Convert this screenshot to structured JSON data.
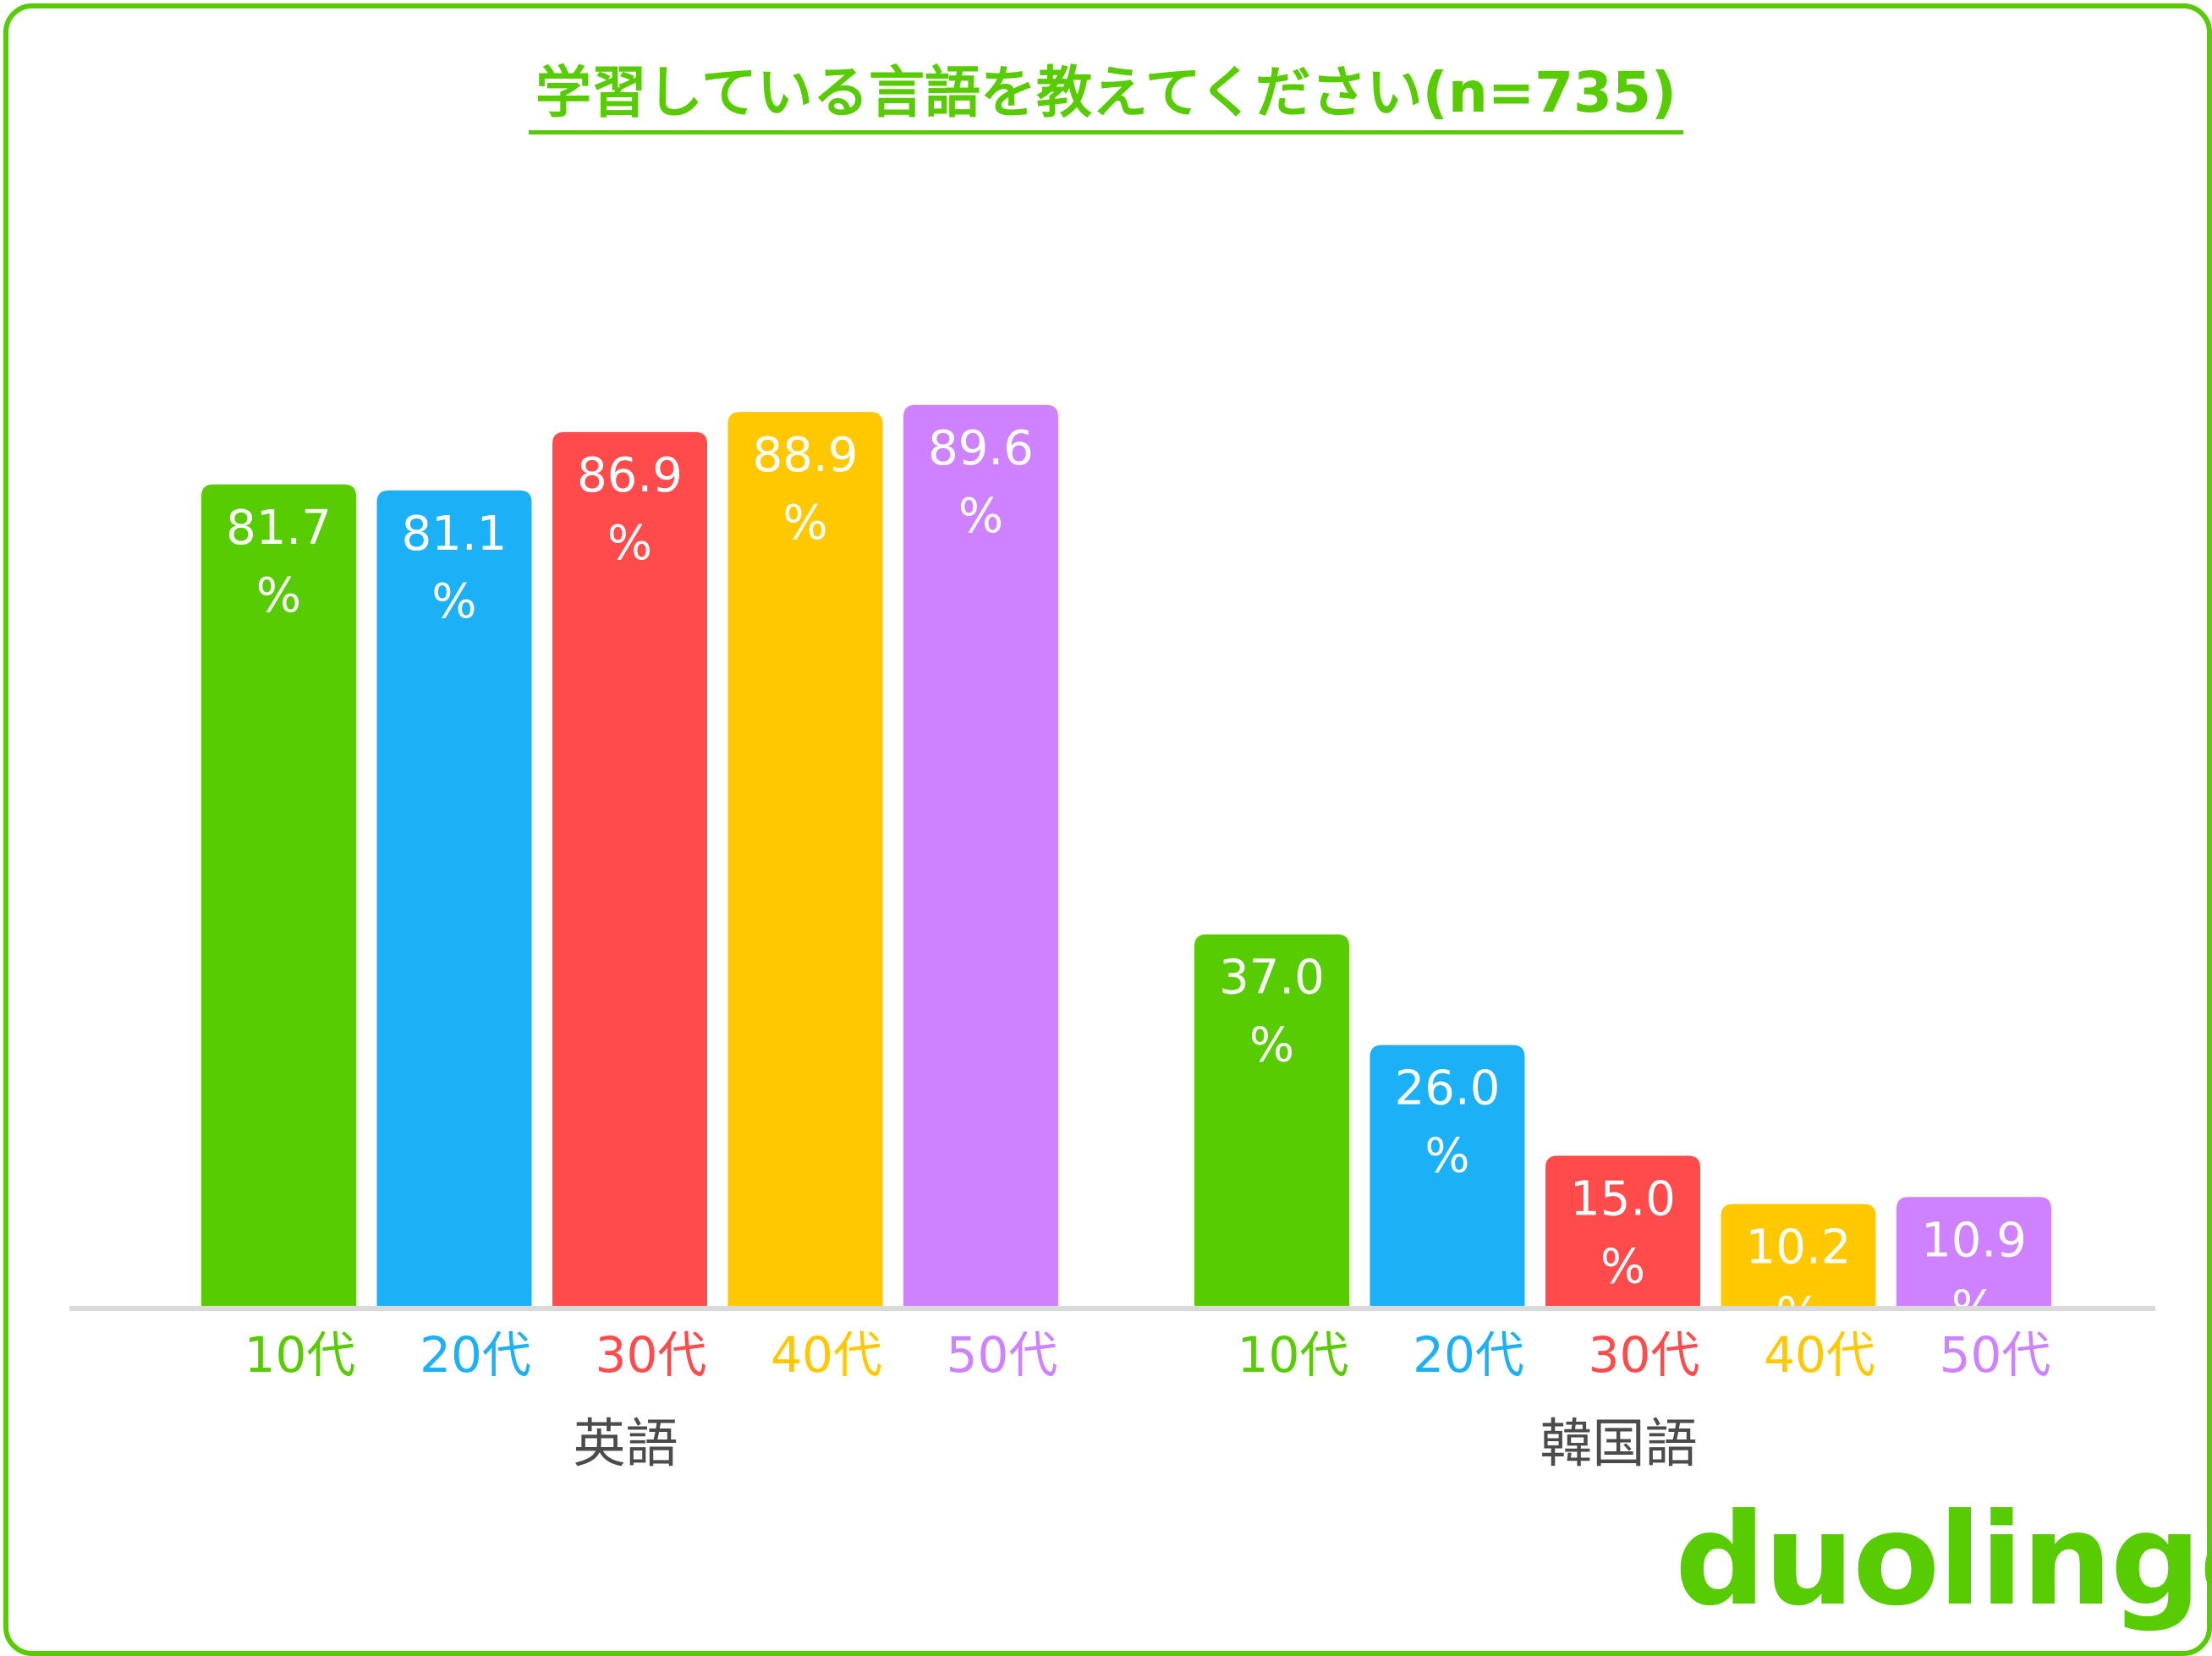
{
  "chart_data": {
    "type": "bar",
    "title": "学習している言語を教えてください(n=735)",
    "ylim": [
      0,
      100
    ],
    "unit": "%",
    "groups": [
      {
        "name": "英語",
        "categories": [
          "10代",
          "20代",
          "30代",
          "40代",
          "50代"
        ],
        "values": [
          81.7,
          81.1,
          86.9,
          88.9,
          89.6
        ],
        "labels": [
          "81.7",
          "81.1",
          "86.9",
          "88.9",
          "89.6"
        ]
      },
      {
        "name": "韓国語",
        "categories": [
          "10代",
          "20代",
          "30代",
          "40代",
          "50代"
        ],
        "values": [
          37.0,
          26.0,
          15.0,
          10.2,
          10.9
        ],
        "labels": [
          "37.0",
          "26.0",
          "15.0",
          "10.2",
          "10.9"
        ]
      }
    ],
    "series_colors": [
      "#58cc02",
      "#1cb0f6",
      "#ff4b4b",
      "#ffc800",
      "#ce82ff"
    ]
  },
  "logo": {
    "text": "duolingo",
    "color": "#58cc02"
  },
  "colors": {
    "border": "#58cc02",
    "baseline": "#d9d9d9",
    "group_label": "#4b4b4b"
  }
}
